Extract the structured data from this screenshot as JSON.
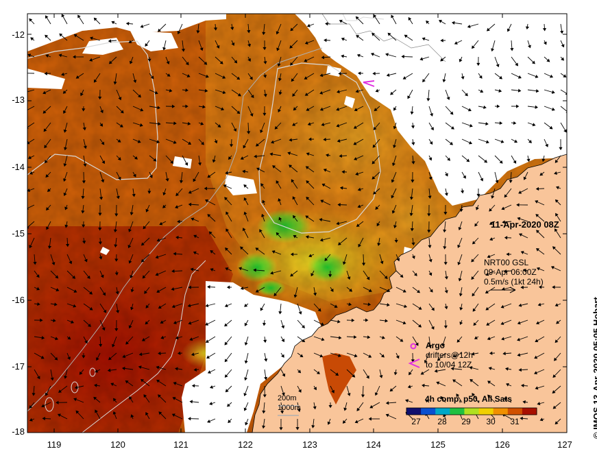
{
  "map": {
    "date_label": "11-Apr-2020 08Z",
    "credit": "© IMOS 13-Apr-2020 05:05 Hobart",
    "lat_ticks": [
      "-12",
      "-13",
      "-14",
      "-15",
      "-16",
      "-17",
      "-18"
    ],
    "lon_ticks": [
      "119",
      "120",
      "121",
      "122",
      "123",
      "124",
      "125",
      "126",
      "127"
    ],
    "lon_range": [
      118.6,
      127.0
    ],
    "lat_range": [
      -17.95,
      -11.8
    ],
    "current_legend": {
      "line1": "NRT00 GSL",
      "line2": "09-Apr 06:00Z",
      "line3": "0.5m/s (1kt 24h)"
    },
    "drifter_legend": {
      "argo": "Argo",
      "line1": "drifters@12h",
      "line2": "to 10/04 12Z"
    },
    "isobaths": {
      "shallow": "200m",
      "deep": "1000m"
    },
    "colorbar": {
      "title": "4h comp, p50, All Sats",
      "ticks": [
        "27",
        "28",
        "29",
        "30",
        "31"
      ],
      "colors": [
        "#10106e",
        "#0a50d0",
        "#00a8c8",
        "#20c040",
        "#b0e020",
        "#f0d000",
        "#f09000",
        "#d05000",
        "#a81000"
      ]
    },
    "colors": {
      "land": "#f9c59a",
      "ocean_warm": "#b52a00",
      "ocean_mid": "#d65e05",
      "ocean_cool": "#e69a18",
      "isobath": "#d8d8d8",
      "argo": "#e030e0"
    }
  }
}
